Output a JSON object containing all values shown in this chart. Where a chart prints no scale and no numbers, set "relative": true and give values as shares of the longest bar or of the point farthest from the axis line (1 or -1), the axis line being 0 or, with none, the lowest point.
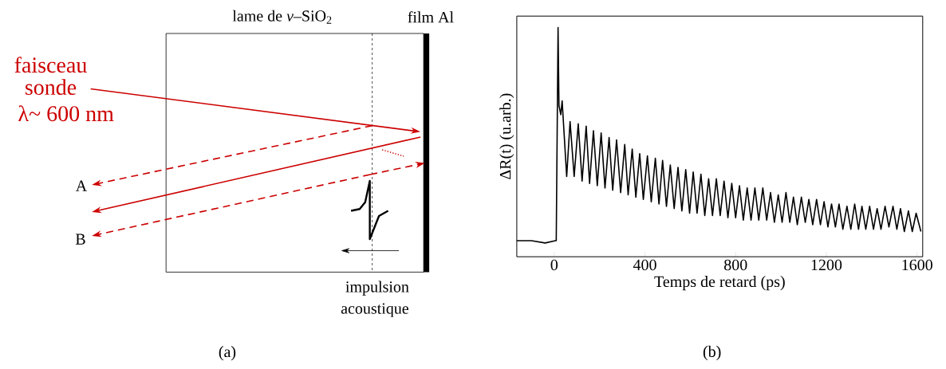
{
  "chart_data": [
    {
      "type": "other",
      "annotations": [
        "lame de *v*–SiO$_{2}$",
        "film Al",
        "faisceau",
        "sonde",
        "λ~ 600 nm",
        "A",
        "B",
        "impulsion",
        "acoustique",
        "(a)"
      ]
    },
    {
      "type": "line",
      "relative": true,
      "xlabel": "Temps de retard (ps)",
      "ylabel": "ΔR(t)  (u.arb.)",
      "xlim": [
        -165,
        1625
      ],
      "xticks": [
        0,
        400,
        800,
        1200,
        1600
      ],
      "annotations": [
        "(b)"
      ],
      "series": [
        {
          "color": "#000000",
          "x": [
            -165,
            -100,
            -40,
            5,
            9,
            17,
            21,
            29,
            35,
            55,
            70,
            88,
            106,
            123,
            141,
            156,
            173,
            190,
            207,
            224,
            242,
            258,
            275,
            293,
            311,
            326,
            344,
            360,
            377,
            393,
            411,
            428,
            446,
            462,
            478,
            495,
            512,
            529,
            546,
            563,
            580,
            597,
            613,
            630,
            647,
            664,
            681,
            698,
            715,
            732,
            749,
            766,
            783,
            800,
            817,
            834,
            851,
            868,
            885,
            902,
            920,
            937,
            954,
            971,
            988,
            1005,
            1022,
            1039,
            1055,
            1072,
            1090,
            1107,
            1123,
            1140,
            1157,
            1174,
            1190,
            1207,
            1223,
            1240,
            1256,
            1273,
            1291,
            1308,
            1325,
            1342,
            1357,
            1374,
            1391,
            1408,
            1424,
            1441,
            1459,
            1476,
            1494,
            1511,
            1527,
            1544,
            1562,
            1579,
            1596,
            1617
          ],
          "values": [
            0.07,
            0.07,
            0.06,
            0.07,
            0.07,
            1.0,
            0.66,
            0.62,
            0.68,
            0.35,
            0.59,
            0.35,
            0.58,
            0.33,
            0.57,
            0.32,
            0.55,
            0.31,
            0.54,
            0.3,
            0.52,
            0.29,
            0.51,
            0.28,
            0.49,
            0.27,
            0.47,
            0.26,
            0.45,
            0.25,
            0.44,
            0.24,
            0.43,
            0.23,
            0.42,
            0.22,
            0.4,
            0.21,
            0.39,
            0.2,
            0.38,
            0.19,
            0.37,
            0.19,
            0.36,
            0.18,
            0.34,
            0.18,
            0.34,
            0.18,
            0.33,
            0.17,
            0.32,
            0.17,
            0.31,
            0.16,
            0.3,
            0.16,
            0.3,
            0.16,
            0.3,
            0.16,
            0.28,
            0.15,
            0.27,
            0.15,
            0.28,
            0.15,
            0.26,
            0.14,
            0.26,
            0.15,
            0.25,
            0.14,
            0.25,
            0.14,
            0.24,
            0.13,
            0.23,
            0.13,
            0.23,
            0.12,
            0.22,
            0.12,
            0.23,
            0.12,
            0.22,
            0.12,
            0.22,
            0.12,
            0.21,
            0.12,
            0.22,
            0.13,
            0.22,
            0.12,
            0.21,
            0.11,
            0.2,
            0.11,
            0.19,
            0.11
          ]
        }
      ]
    }
  ]
}
